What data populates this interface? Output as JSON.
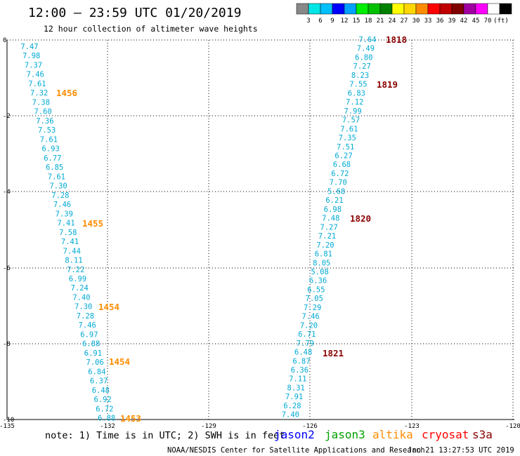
{
  "title": "12:00 – 23:59 UTC 01/20/2019",
  "subtitle": "12 hour collection of altimeter wave heights",
  "legend": {
    "colors": [
      "#888888",
      "#00e5e5",
      "#00bfff",
      "#0000ff",
      "#00a0ff",
      "#00ee00",
      "#00c000",
      "#008000",
      "#ffff00",
      "#ffd700",
      "#ff8c00",
      "#ff0000",
      "#c00000",
      "#800000",
      "#a000a0",
      "#ff00ff",
      "#ffffff",
      "#000000"
    ],
    "labels": [
      "3",
      "6",
      "9",
      "12",
      "15",
      "18",
      "21",
      "24",
      "27",
      "30",
      "33",
      "36",
      "39",
      "42",
      "45",
      "70"
    ],
    "unit": "(ft)"
  },
  "axes": {
    "x_ticks": [
      "-135",
      "-132",
      "-129",
      "-126",
      "-123",
      "-120"
    ],
    "y_ticks": [
      "0",
      "-2",
      "-4",
      "-6",
      "-8",
      "-10"
    ]
  },
  "tracks": [
    {
      "color": "#00aad4",
      "values": [
        "7.47",
        "7.98",
        "7.37",
        "7.46",
        "7.61",
        "7.32",
        "7.38",
        "7.60",
        "7.36",
        "7.53",
        "7.61",
        "6.93",
        "6.77",
        "6.85",
        "7.61",
        "7.30",
        "7.28",
        "7.46",
        "7.39",
        "7.41",
        "7.58",
        "7.41",
        "7.44",
        "8.11",
        "7.22",
        "6.99",
        "7.24",
        "7.40",
        "7.30",
        "7.28",
        "7.46",
        "6.97",
        "6.88",
        "6.91",
        "7.06",
        "6.84",
        "6.37",
        "6.48",
        "6.92",
        "6.72",
        "6.88"
      ]
    },
    {
      "color": "#00aad4",
      "values": [
        "7.64",
        "7.49",
        "6.80",
        "7.27",
        "8.23",
        "7.55",
        "6.83",
        "7.12",
        "7.99",
        "7.57",
        "7.61",
        "7.35",
        "7.51",
        "6.27",
        "6.68",
        "6.72",
        "7.70",
        "5.68",
        "6.21",
        "6.98",
        "7.48",
        "7.27",
        "7.21",
        "7.20",
        "6.81",
        "8.05",
        "5.08",
        "6.36",
        "6.55",
        "7.05",
        "7.29",
        "7.46",
        "7.20",
        "6.71",
        "7.79",
        "6.48",
        "6.87",
        "6.36",
        "7.11",
        "8.31",
        "7.91",
        "6.28",
        "7.40"
      ]
    }
  ],
  "time_labels": [
    {
      "text": "1456",
      "color": "#ff8c00"
    },
    {
      "text": "1455",
      "color": "#ff8c00"
    },
    {
      "text": "1454",
      "color": "#ff8c00"
    },
    {
      "text": "1454",
      "color": "#ff8c00"
    },
    {
      "text": "1453",
      "color": "#ff8c00"
    },
    {
      "text": "1818",
      "color": "#8b0000"
    },
    {
      "text": "1819",
      "color": "#8b0000"
    },
    {
      "text": "1820",
      "color": "#8b0000"
    },
    {
      "text": "1821",
      "color": "#8b0000"
    }
  ],
  "note": "note: 1) Time is in UTC; 2) SWH is in feet",
  "satellites": [
    {
      "name": "jason2",
      "color": "#0000ff"
    },
    {
      "name": "jason3",
      "color": "#00a000"
    },
    {
      "name": "altika",
      "color": "#ff8c00"
    },
    {
      "name": "cryosat",
      "color": "#ff0000"
    },
    {
      "name": "s3a",
      "color": "#8b0000"
    }
  ],
  "footer_left": "NOAA/NESDIS Center for Satellite Applications and Research",
  "footer_right": "Jan 21 13:27:53 UTC 2019"
}
